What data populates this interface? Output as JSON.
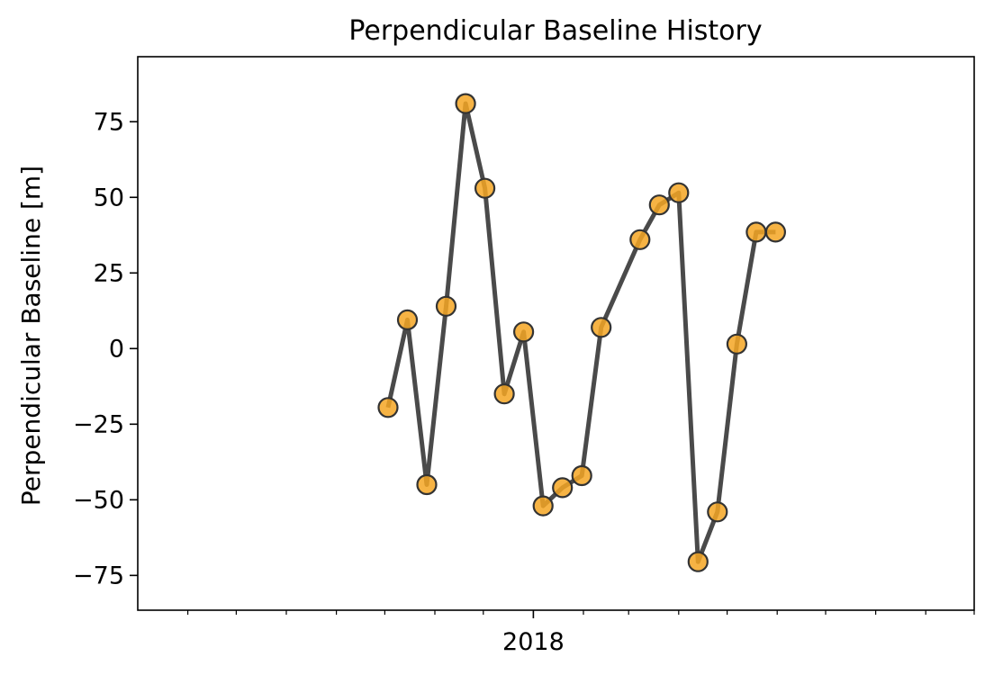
{
  "chart_data": {
    "type": "line",
    "title": "Perpendicular Baseline History",
    "xlabel": "",
    "ylabel": "Perpendicular Baseline [m]",
    "xlim": [
      "2017-05-01",
      "2018-10-01"
    ],
    "ylim": [
      -86.5,
      96.5
    ],
    "y_ticks": [
      -75,
      -50,
      -25,
      0,
      25,
      50,
      75
    ],
    "x_major_ticks": [
      {
        "date": "2018-01-01",
        "label": "2018"
      }
    ],
    "x_minor_ticks": [
      "2017-06-01",
      "2017-07-01",
      "2017-08-01",
      "2017-09-01",
      "2017-10-01",
      "2017-11-01",
      "2017-12-01",
      "2018-02-01",
      "2018-03-01",
      "2018-04-01",
      "2018-05-01",
      "2018-06-01",
      "2018-07-01",
      "2018-08-01",
      "2018-09-01",
      "2018-10-01"
    ],
    "grid": false,
    "colors": {
      "line": "#3b3b3b",
      "marker_fill": "#f5a623",
      "marker_edge": "#333333"
    },
    "series": [
      {
        "x": [
          "2017-10-03",
          "2017-10-15",
          "2017-10-27",
          "2017-11-08",
          "2017-11-20",
          "2017-12-02",
          "2017-12-14",
          "2017-12-26",
          "2018-01-07",
          "2018-01-19",
          "2018-01-31",
          "2018-02-12",
          "2018-03-08",
          "2018-03-20",
          "2018-04-01",
          "2018-04-13",
          "2018-04-25",
          "2018-05-07",
          "2018-05-19",
          "2018-05-31"
        ],
        "values": [
          -19.5,
          9.5,
          -45,
          14,
          81,
          53,
          -15,
          5.5,
          -52,
          -46,
          -42,
          7,
          36,
          47.5,
          51.5,
          -70.5,
          -54,
          1.5,
          38.5,
          38.5
        ]
      }
    ]
  }
}
